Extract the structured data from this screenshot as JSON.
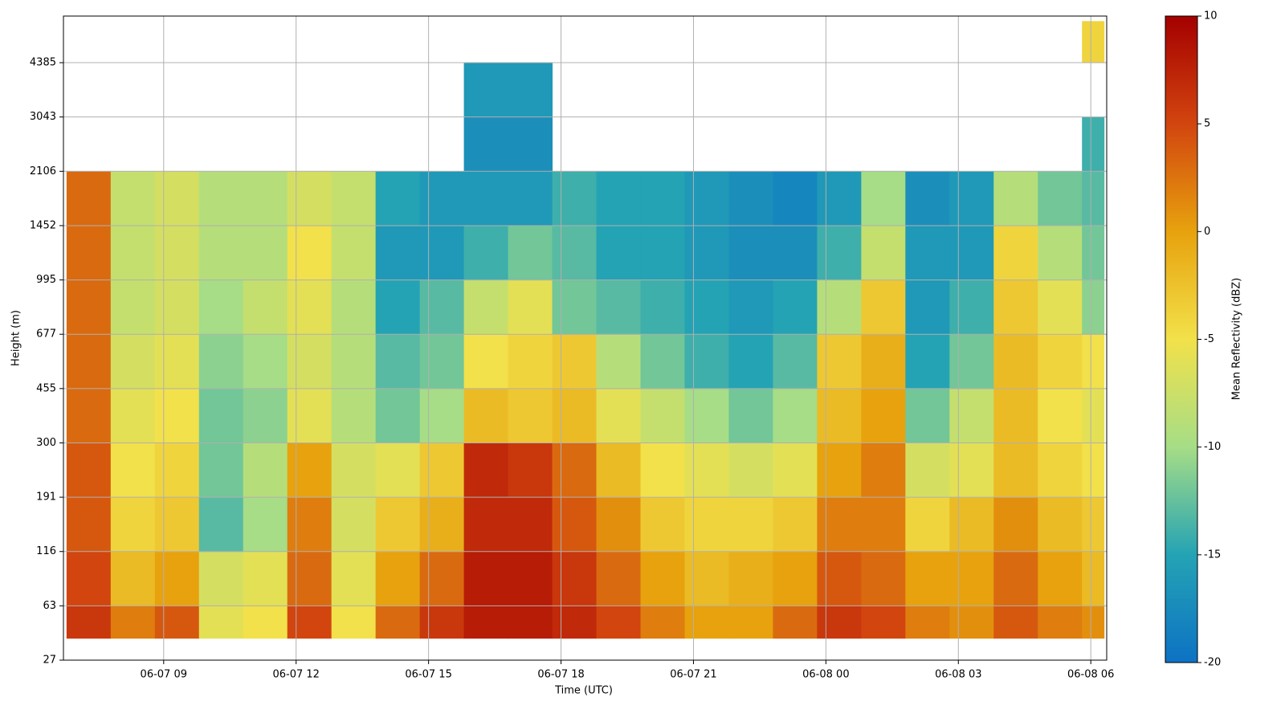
{
  "chart_data": {
    "type": "heatmap",
    "xlabel": "Time (UTC)",
    "ylabel": "Height (m)",
    "colorbar_label": "Mean Reflectivity (dBZ)",
    "xlim": [
      6.73,
      30.36
    ],
    "xticks": [
      {
        "value": 9,
        "label": "06-07 09"
      },
      {
        "value": 12,
        "label": "06-07 12"
      },
      {
        "value": 15,
        "label": "06-07 15"
      },
      {
        "value": 18,
        "label": "06-07 18"
      },
      {
        "value": 21,
        "label": "06-07 21"
      },
      {
        "value": 24,
        "label": "06-08 00"
      },
      {
        "value": 27,
        "label": "06-08 03"
      },
      {
        "value": 30,
        "label": "06-08 06"
      }
    ],
    "ylim": [
      27,
      6000
    ],
    "yticks": [
      27,
      63,
      116,
      191,
      300,
      455,
      677,
      995,
      1452,
      2106,
      3043,
      4385
    ],
    "x_edges": [
      6.8,
      7.8,
      8.8,
      9.8,
      10.8,
      11.8,
      12.8,
      13.8,
      14.8,
      15.8,
      16.8,
      17.8,
      18.8,
      19.8,
      20.8,
      21.8,
      22.8,
      23.8,
      24.8,
      25.8,
      26.8,
      27.8,
      28.8,
      29.8,
      30.3
    ],
    "y_edges": [
      38,
      63,
      116,
      191,
      300,
      455,
      677,
      995,
      1452,
      2106,
      3043,
      4385,
      5800
    ],
    "values": [
      [
        6,
        5,
        4,
        4,
        3,
        3,
        3,
        3,
        3,
        null,
        null,
        null
      ],
      [
        2,
        -2,
        -4,
        -5,
        -6,
        -7,
        -8,
        -8,
        -8,
        null,
        null,
        null
      ],
      [
        4,
        0,
        -3,
        -4,
        -5,
        -6,
        -7,
        -7,
        -7,
        null,
        null,
        null
      ],
      [
        -6,
        -7,
        -13,
        -12,
        -12,
        -11,
        -10,
        -9,
        -9,
        null,
        null,
        null
      ],
      [
        -5,
        -6,
        -10,
        -9,
        -11,
        -10,
        -8,
        -9,
        -9,
        null,
        null,
        null
      ],
      [
        5,
        3,
        2,
        0,
        -6,
        -7,
        -6,
        -5,
        -7,
        null,
        null,
        null
      ],
      [
        -5,
        -6,
        -7,
        -7,
        -9,
        -9,
        -9,
        -8,
        -8,
        null,
        null,
        null
      ],
      [
        3,
        0,
        -3,
        -6,
        -12,
        -13,
        -15,
        -16,
        -15,
        null,
        null,
        null
      ],
      [
        6,
        3,
        -1,
        -3,
        -10,
        -12,
        -13,
        -16,
        -16,
        null,
        null,
        null
      ],
      [
        8,
        8,
        7,
        7,
        -2,
        -5,
        -8,
        -14,
        -16,
        -17,
        -16,
        null
      ],
      [
        8,
        8,
        7,
        6,
        -3,
        -4,
        -6,
        -12,
        -16,
        -17,
        -16,
        null
      ],
      [
        7,
        6,
        4,
        3,
        -2,
        -3,
        -12,
        -13,
        -14,
        null,
        null,
        null
      ],
      [
        5,
        3,
        1,
        -2,
        -6,
        -9,
        -13,
        -15,
        -15,
        null,
        null,
        null
      ],
      [
        2,
        0,
        -3,
        -5,
        -8,
        -12,
        -14,
        -15,
        -15,
        null,
        null,
        null
      ],
      [
        0,
        -2,
        -4,
        -6,
        -10,
        -14,
        -15,
        -16,
        -16,
        null,
        null,
        null
      ],
      [
        0,
        -1,
        -4,
        -7,
        -12,
        -15,
        -16,
        -17,
        -17,
        null,
        null,
        null
      ],
      [
        3,
        0,
        -3,
        -6,
        -10,
        -13,
        -15,
        -17,
        -18,
        null,
        null,
        null
      ],
      [
        6,
        4,
        2,
        0,
        -2,
        -3,
        -9,
        -14,
        -16,
        null,
        null,
        null
      ],
      [
        5,
        3,
        2,
        2,
        0,
        -1,
        -3,
        -8,
        -10,
        null,
        null,
        null
      ],
      [
        2,
        0,
        -4,
        -7,
        -12,
        -15,
        -16,
        -16,
        -17,
        null,
        null,
        null
      ],
      [
        1,
        0,
        -2,
        -6,
        -8,
        -12,
        -14,
        -16,
        -16,
        null,
        null,
        null
      ],
      [
        4,
        3,
        1,
        -2,
        -2,
        -2,
        -3,
        -4,
        -9,
        null,
        null,
        null
      ],
      [
        2,
        0,
        -2,
        -4,
        -5,
        -4,
        -6,
        -9,
        -12,
        null,
        null,
        null
      ],
      [
        1,
        -2,
        -3,
        -5,
        -6,
        -5,
        -11,
        -12,
        -13,
        -14,
        null,
        -4
      ]
    ],
    "clim": [
      -20,
      10
    ],
    "cticks": [
      -20,
      -15,
      -10,
      -5,
      0,
      5,
      10
    ],
    "colormap": [
      "#0d72c4",
      "#24a3b4",
      "#a6dd86",
      "#f2e14a",
      "#e7a20e",
      "#d2450f",
      "#a40000"
    ],
    "grid": true
  }
}
